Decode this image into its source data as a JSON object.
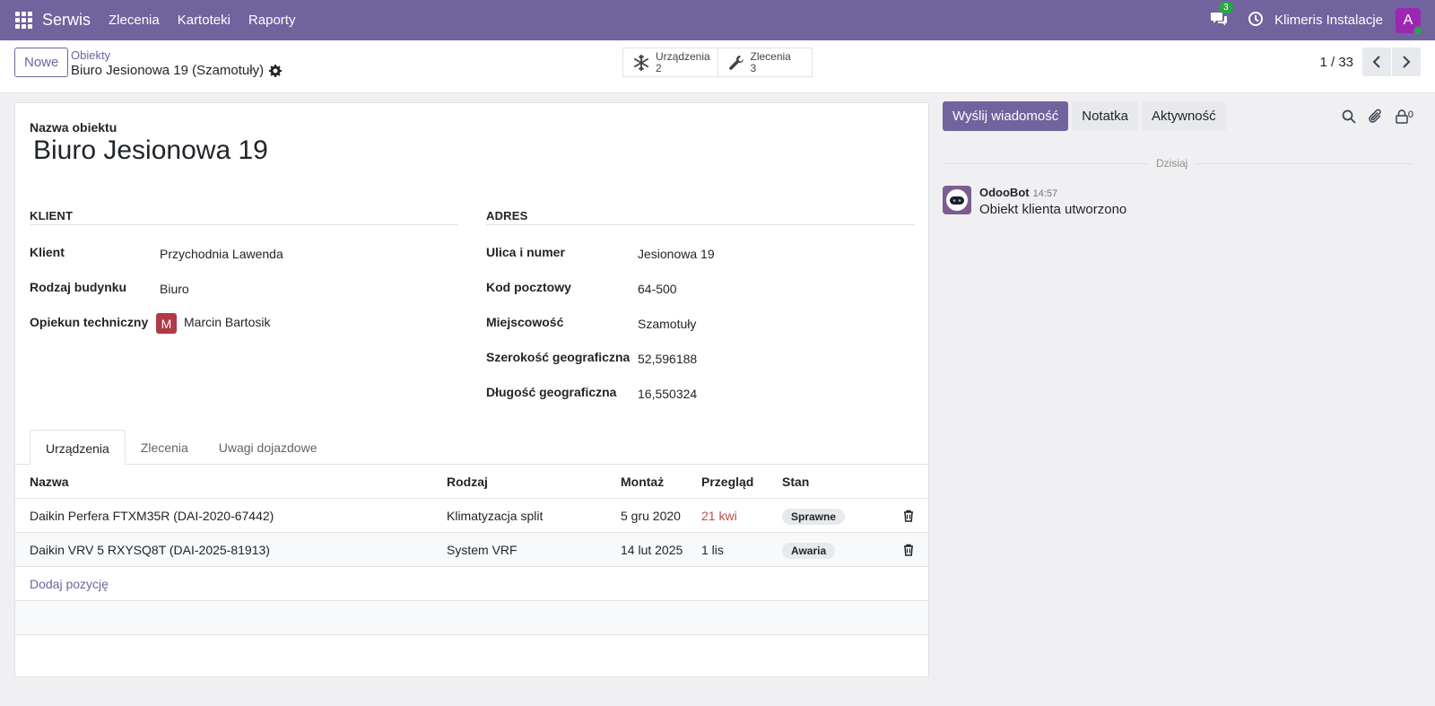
{
  "navbar": {
    "app_name": "Serwis",
    "menu": [
      "Zlecenia",
      "Kartoteki",
      "Raporty"
    ],
    "chat_count": "3",
    "company": "Klimeris Instalacje",
    "user_initial": "A"
  },
  "control": {
    "new_label": "Nowe",
    "breadcrumb_parent": "Obiekty",
    "breadcrumb_current": "Biuro Jesionowa 19 (Szamotuły)",
    "smart_buttons": [
      {
        "label": "Urządzenia",
        "count": "2",
        "icon": "snowflake-icon"
      },
      {
        "label": "Zlecenia",
        "count": "3",
        "icon": "wrench-icon"
      }
    ],
    "pager": "1 / 33"
  },
  "form": {
    "name_label": "Nazwa obiektu",
    "name_value": "Biuro Jesionowa 19",
    "client_group": "KLIENT",
    "address_group": "ADRES",
    "client_fields": [
      {
        "label": "Klient",
        "value": "Przychodnia Lawenda"
      },
      {
        "label": "Rodzaj budynku",
        "value": "Biuro"
      },
      {
        "label": "Opiekun techniczny",
        "value": "Marcin Bartosik",
        "avatar": "M"
      }
    ],
    "address_fields": [
      {
        "label": "Ulica i numer",
        "value": "Jesionowa 19"
      },
      {
        "label": "Kod pocztowy",
        "value": "64-500"
      },
      {
        "label": "Miejscowość",
        "value": "Szamotuły"
      },
      {
        "label": "Szerokość geograficzna",
        "value": "52,596188"
      },
      {
        "label": "Długość geograficzna",
        "value": "16,550324"
      }
    ],
    "tabs": [
      "Urządzenia",
      "Zlecenia",
      "Uwagi dojazdowe"
    ],
    "table": {
      "headers": [
        "Nazwa",
        "Rodzaj",
        "Montaż",
        "Przegląd",
        "Stan"
      ],
      "rows": [
        {
          "name": "Daikin Perfera FTXM35R (DAI-2020-67442)",
          "type": "Klimatyzacja split",
          "montaz": "5 gru 2020",
          "przeglad": "21 kwi",
          "stan": "Sprawne"
        },
        {
          "name": "Daikin VRV 5 RXYSQ8T (DAI-2025-81913)",
          "type": "System VRF",
          "montaz": "14 lut 2025",
          "przeglad": "1 lis",
          "stan": "Awaria"
        }
      ],
      "add_line": "Dodaj pozycję"
    }
  },
  "chatter": {
    "send_message": "Wyślij wiadomość",
    "note": "Notatka",
    "activity": "Aktywność",
    "follower_count": "0",
    "date_separator": "Dzisiaj",
    "message": {
      "author": "OdooBot",
      "time": "14:57",
      "text": "Obiekt klienta utworzono"
    }
  }
}
